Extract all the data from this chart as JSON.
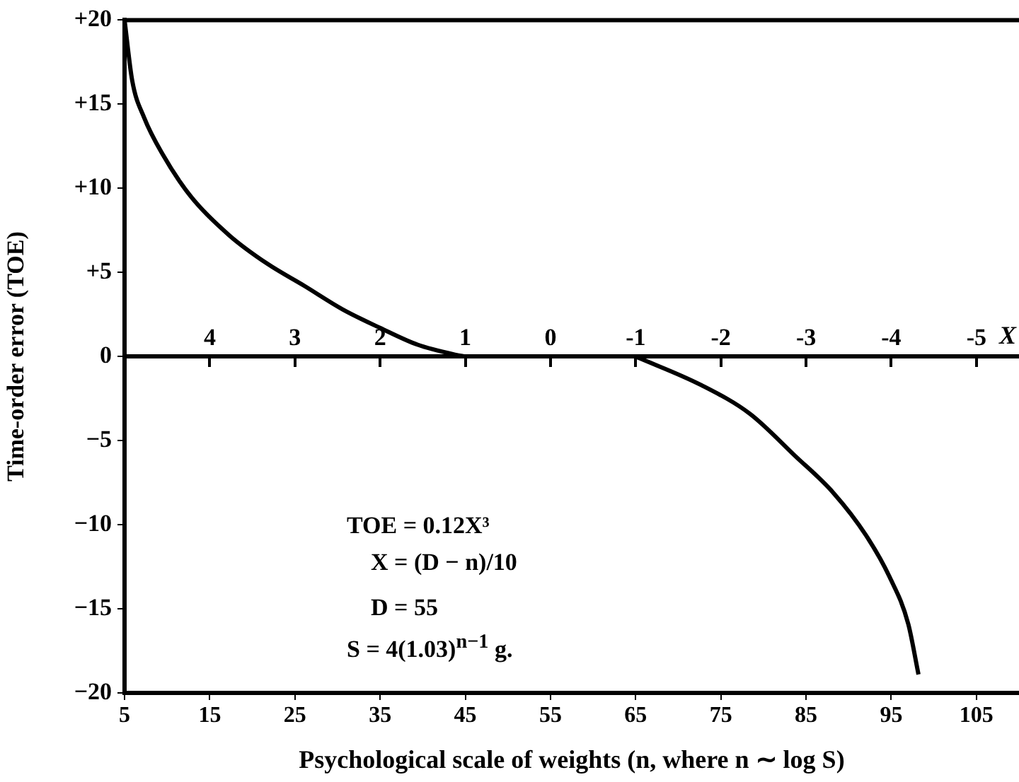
{
  "chart_data": {
    "type": "line",
    "xlabel": "Psychological scale of weights (n, where n ∼ log S)",
    "ylabel": "Time-order error (TOE)",
    "x2label": "X",
    "xlim": [
      5,
      110
    ],
    "xticks": [
      5,
      15,
      25,
      35,
      45,
      55,
      65,
      75,
      85,
      95,
      105
    ],
    "x2lim": [
      5,
      -5.5
    ],
    "x2ticks": [
      4,
      3,
      2,
      1,
      0,
      -1,
      -2,
      -3,
      -4,
      -5
    ],
    "ylim": [
      -20,
      20
    ],
    "yticks": [
      {
        "value": 20,
        "label": "+20"
      },
      {
        "value": 15,
        "label": "+15"
      },
      {
        "value": 10,
        "label": "+10"
      },
      {
        "value": 5,
        "label": "+5"
      },
      0,
      -5,
      -10,
      -15,
      -20
    ],
    "series": [
      {
        "color": "#000000",
        "x": [
          5,
          5.9,
          7.3,
          9.5,
          12.8,
          17.3,
          21.8,
          26.1,
          30.6,
          35,
          39.4,
          43.9,
          45
        ],
        "values": [
          20,
          16.4,
          14.2,
          12,
          9.5,
          7.2,
          5.5,
          4.2,
          2.8,
          1.7,
          0.7,
          0.1,
          0
        ]
      },
      {
        "color": "#000000",
        "x": [
          65,
          72.7,
          78.4,
          83.7,
          88.2,
          92,
          94.8,
          97,
          98.2
        ],
        "values": [
          0,
          -1.7,
          -3.4,
          -5.9,
          -8.1,
          -10.6,
          -13.1,
          -15.9,
          -18.9
        ]
      }
    ],
    "annotations": [
      "TOE = 0.12X³",
      "X = (D − n)/10",
      "D = 55",
      "S = 4(1.03)$^{n−1}$ g."
    ],
    "legend": false,
    "grid": false
  }
}
